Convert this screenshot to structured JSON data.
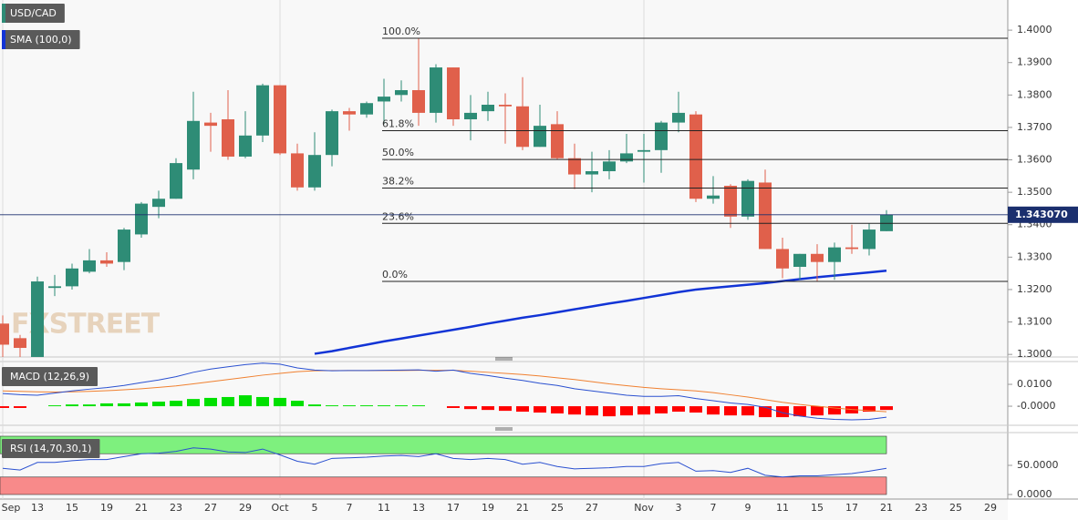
{
  "chart_data": [
    {
      "type": "candlestick",
      "title": "USD/CAD",
      "watermark": "FXSTREET",
      "categories": [
        "Sep",
        null,
        "13",
        null,
        "15",
        null,
        "19",
        null,
        "21",
        null,
        "23",
        null,
        "27",
        null,
        "29",
        null,
        "Oct",
        null,
        "5",
        null,
        "7",
        null,
        "11",
        null,
        "13",
        null,
        "17",
        null,
        "19",
        null,
        "21",
        null,
        "25",
        null,
        "27",
        null,
        null,
        "Nov",
        null,
        "3",
        null,
        "7",
        null,
        "9",
        null,
        "11",
        null,
        "15",
        null,
        "17",
        null,
        "21",
        null,
        "23",
        null,
        "25",
        null,
        "29"
      ],
      "open": [
        1.3095,
        1.305,
        1.299,
        1.3205,
        1.321,
        1.3255,
        1.329,
        1.3285,
        1.337,
        1.3455,
        1.348,
        1.357,
        1.3715,
        1.3725,
        1.361,
        1.3675,
        1.383,
        1.362,
        1.3515,
        1.3615,
        1.375,
        1.374,
        1.378,
        1.38,
        1.3815,
        1.3745,
        1.3885,
        1.3725,
        1.375,
        1.377,
        1.3765,
        1.364,
        1.371,
        1.3605,
        1.3555,
        1.3565,
        1.3595,
        1.3625,
        1.363,
        1.3715,
        1.374,
        1.348,
        1.352,
        1.3425,
        1.353,
        1.3325,
        1.327,
        1.331,
        1.3285,
        1.333,
        1.3325,
        1.338,
        null,
        null,
        null,
        null,
        null,
        null
      ],
      "high": [
        1.312,
        1.306,
        1.324,
        1.3245,
        1.328,
        1.3325,
        1.3315,
        1.339,
        1.347,
        1.3505,
        1.3605,
        1.381,
        1.3745,
        1.3815,
        1.375,
        1.3835,
        1.383,
        1.365,
        1.3685,
        1.3755,
        1.376,
        1.378,
        1.385,
        1.3845,
        1.3975,
        1.3895,
        1.3885,
        1.38,
        1.381,
        1.3805,
        1.3855,
        1.377,
        1.375,
        1.365,
        1.3625,
        1.363,
        1.368,
        1.368,
        1.372,
        1.381,
        1.375,
        1.355,
        1.3525,
        1.354,
        1.357,
        1.336,
        1.331,
        1.334,
        1.3345,
        1.34,
        1.3405,
        1.3445,
        null,
        null,
        null,
        null,
        null,
        null
      ],
      "low": [
        1.299,
        1.299,
        1.298,
        1.318,
        1.32,
        1.325,
        1.327,
        1.326,
        1.336,
        1.342,
        1.348,
        1.354,
        1.3625,
        1.36,
        1.3605,
        1.3655,
        1.3615,
        1.3505,
        1.3505,
        1.358,
        1.369,
        1.373,
        1.371,
        1.378,
        1.3705,
        1.3715,
        1.3705,
        1.366,
        1.372,
        1.365,
        1.363,
        1.364,
        1.36,
        1.351,
        1.35,
        1.354,
        1.359,
        1.353,
        1.356,
        1.3685,
        1.347,
        1.3465,
        1.339,
        1.3415,
        1.3325,
        1.3235,
        1.323,
        1.3225,
        1.323,
        1.331,
        1.3305,
        1.338,
        null,
        null,
        null,
        null,
        null,
        null
      ],
      "close": [
        1.303,
        1.302,
        1.3225,
        1.321,
        1.3265,
        1.329,
        1.328,
        1.3385,
        1.3465,
        1.348,
        1.359,
        1.372,
        1.3705,
        1.361,
        1.3675,
        1.383,
        1.362,
        1.3515,
        1.3615,
        1.375,
        1.374,
        1.3775,
        1.3795,
        1.3815,
        1.3745,
        1.3885,
        1.3725,
        1.3745,
        1.377,
        1.3765,
        1.364,
        1.3705,
        1.3605,
        1.3555,
        1.3565,
        1.3595,
        1.362,
        1.363,
        1.3715,
        1.3745,
        1.348,
        1.349,
        1.3425,
        1.3535,
        1.3325,
        1.3265,
        1.331,
        1.3285,
        1.333,
        1.3325,
        1.3385,
        1.3431,
        null,
        null,
        null,
        null,
        null,
        null
      ],
      "up_color": "#2e8c76",
      "down_color": "#e0604b",
      "ylim": [
        1.2992,
        1.4093
      ],
      "yticks": [
        {
          "value": 1.3,
          "label": "1.3000"
        },
        {
          "value": 1.31,
          "label": "1.3100"
        },
        {
          "value": 1.32,
          "label": "1.3200"
        },
        {
          "value": 1.33,
          "label": "1.3300"
        },
        {
          "value": 1.34,
          "label": "1.3400"
        },
        {
          "value": 1.35,
          "label": "1.3500"
        },
        {
          "value": 1.36,
          "label": "1.3600"
        },
        {
          "value": 1.37,
          "label": "1.3700"
        },
        {
          "value": 1.38,
          "label": "1.3800"
        },
        {
          "value": 1.39,
          "label": "1.3900"
        },
        {
          "value": 1.4,
          "label": "1.4000"
        }
      ],
      "series": [
        {
          "name": "SMA (100,0)",
          "color": "#1234d6",
          "values": [
            null,
            null,
            null,
            null,
            null,
            null,
            null,
            null,
            null,
            null,
            null,
            null,
            null,
            null,
            null,
            null,
            null,
            null,
            1.3002,
            1.301,
            1.302,
            1.303,
            1.304,
            1.3049,
            1.3058,
            1.3067,
            1.3076,
            1.3085,
            1.3095,
            1.3104,
            1.3113,
            1.3121,
            1.313,
            1.3139,
            1.3148,
            1.3157,
            1.3165,
            1.3174,
            1.3183,
            1.3192,
            1.32,
            1.3205,
            1.321,
            1.3215,
            1.322,
            1.3226,
            1.3232,
            1.3238,
            1.3243,
            1.3248,
            1.3253,
            1.3258,
            null,
            null,
            null,
            null,
            null,
            null
          ]
        }
      ],
      "fib_levels": [
        {
          "label": "100.0%",
          "value": 1.3975
        },
        {
          "label": "61.8%",
          "value": 1.369
        },
        {
          "label": "50.0%",
          "value": 1.3601
        },
        {
          "label": "38.2%",
          "value": 1.3513
        },
        {
          "label": "23.6%",
          "value": 1.3404
        },
        {
          "label": "0.0%",
          "value": 1.3225
        }
      ],
      "last_price": {
        "value": 1.34307,
        "label": "1.343070",
        "color": "#1b2f6e"
      }
    },
    {
      "type": "macd",
      "title": "MACD (12,26,9)",
      "ylim": [
        -0.0083,
        0.02
      ],
      "yticks": [
        {
          "value": 0.01,
          "label": "0.0100"
        },
        {
          "value": 0,
          "label": "-0.0000"
        }
      ],
      "histogram": {
        "up_color": "#00e000",
        "down_color": "#ff0000",
        "values": [
          -0.0008,
          -0.0008,
          0,
          0.0004,
          0.0008,
          0.0008,
          0.0013,
          0.0013,
          0.0017,
          0.0021,
          0.0025,
          0.0033,
          0.0038,
          0.0042,
          0.005,
          0.0042,
          0.0038,
          0.0025,
          0.0008,
          0.0004,
          0.0004,
          0.0004,
          0.0004,
          0.0004,
          0.0004,
          0,
          -0.0008,
          -0.0013,
          -0.0017,
          -0.0021,
          -0.0025,
          -0.0029,
          -0.0033,
          -0.0038,
          -0.0042,
          -0.0046,
          -0.0042,
          -0.0038,
          -0.0033,
          -0.0025,
          -0.0029,
          -0.0038,
          -0.0042,
          -0.0042,
          -0.005,
          -0.005,
          -0.0046,
          -0.0042,
          -0.0038,
          -0.0033,
          -0.0025,
          -0.0017,
          null,
          null,
          null,
          null,
          null,
          null
        ]
      },
      "macd": {
        "color": "#2a50d0",
        "values": [
          0.0058,
          0.0053,
          0.005,
          0.006,
          0.007,
          0.0078,
          0.0085,
          0.0095,
          0.0108,
          0.012,
          0.0135,
          0.0155,
          0.017,
          0.018,
          0.019,
          0.0197,
          0.0192,
          0.0175,
          0.0165,
          0.0162,
          0.0163,
          0.0163,
          0.0164,
          0.0165,
          0.0166,
          0.016,
          0.0165,
          0.015,
          0.014,
          0.0128,
          0.0118,
          0.0105,
          0.0095,
          0.008,
          0.007,
          0.006,
          0.005,
          0.0045,
          0.0045,
          0.0048,
          0.0035,
          0.0025,
          0.0015,
          0.0008,
          -0.0005,
          -0.003,
          -0.0045,
          -0.0055,
          -0.006,
          -0.0062,
          -0.006,
          -0.005,
          null,
          null,
          null,
          null,
          null,
          null
        ]
      },
      "signal": {
        "color": "#f08030",
        "values": [
          0.007,
          0.0068,
          0.0066,
          0.0065,
          0.0066,
          0.0068,
          0.0071,
          0.0075,
          0.008,
          0.0086,
          0.0093,
          0.0102,
          0.0112,
          0.0122,
          0.0132,
          0.0142,
          0.015,
          0.0158,
          0.0162,
          0.0163,
          0.0163,
          0.0163,
          0.0163,
          0.0163,
          0.0164,
          0.0164,
          0.0164,
          0.016,
          0.0155,
          0.015,
          0.0145,
          0.0138,
          0.013,
          0.0122,
          0.0112,
          0.0102,
          0.0094,
          0.0086,
          0.008,
          0.0075,
          0.007,
          0.0062,
          0.0052,
          0.0042,
          0.003,
          0.0018,
          0.0008,
          0.0,
          -0.0008,
          -0.0015,
          -0.002,
          -0.0025,
          null,
          null,
          null,
          null,
          null,
          null
        ]
      }
    },
    {
      "type": "rsi",
      "title": "RSI (14,70,30,1)",
      "ylim": [
        -7.8,
        104.7
      ],
      "yticks": [
        {
          "value": 50,
          "label": "50.0000"
        },
        {
          "value": 0,
          "label": "0.0000"
        }
      ],
      "bands": [
        {
          "from": 70,
          "to": 100,
          "color": "#7ef07e"
        },
        {
          "from": 0,
          "to": 30,
          "color": "#f88a8a"
        }
      ],
      "color": "#2a50d0",
      "values": [
        45,
        42,
        55,
        55,
        58,
        60,
        60,
        65,
        70,
        71,
        74,
        80,
        78,
        73,
        72,
        78,
        68,
        57,
        52,
        62,
        63,
        64,
        66,
        67,
        65,
        70,
        62,
        60,
        62,
        60,
        52,
        55,
        48,
        44,
        45,
        46,
        48,
        48,
        53,
        55,
        40,
        41,
        38,
        45,
        33,
        30,
        32,
        32,
        34,
        36,
        40,
        45,
        null,
        null,
        null,
        null,
        null,
        null
      ]
    }
  ]
}
